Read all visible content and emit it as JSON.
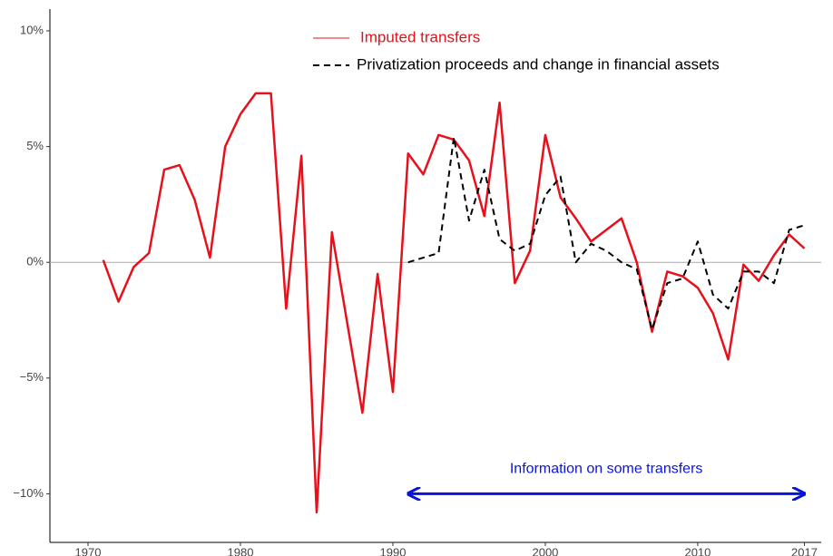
{
  "chart_data": {
    "type": "line",
    "x": [
      1971,
      1972,
      1973,
      1974,
      1975,
      1976,
      1977,
      1978,
      1979,
      1980,
      1981,
      1982,
      1983,
      1984,
      1985,
      1986,
      1987,
      1988,
      1989,
      1990,
      1991,
      1992,
      1993,
      1994,
      1995,
      1996,
      1997,
      1998,
      1999,
      2000,
      2001,
      2002,
      2003,
      2004,
      2005,
      2006,
      2007,
      2008,
      2009,
      2010,
      2011,
      2012,
      2013,
      2014,
      2015,
      2016,
      2017
    ],
    "series": [
      {
        "name": "Imputed transfers",
        "color": "#e8101a",
        "dash": false,
        "values": [
          0.1,
          -1.7,
          -0.2,
          0.4,
          4.0,
          4.2,
          2.7,
          0.2,
          5.0,
          6.4,
          7.3,
          7.3,
          -2.0,
          4.6,
          -10.8,
          1.3,
          -2.6,
          -6.5,
          -0.5,
          -5.6,
          4.7,
          3.8,
          5.5,
          5.3,
          4.4,
          2.0,
          6.9,
          -0.9,
          0.5,
          5.5,
          2.8,
          1.9,
          0.9,
          1.4,
          1.9,
          0.0,
          -3.0,
          -0.4,
          -0.6,
          -1.1,
          -2.2,
          -4.2,
          -0.1,
          -0.8,
          0.3,
          1.2,
          0.6
        ]
      },
      {
        "name": "Privatization proceeds and change in financial assets",
        "color": "#000000",
        "dash": true,
        "values": [
          null,
          null,
          null,
          null,
          null,
          null,
          null,
          null,
          null,
          null,
          null,
          null,
          null,
          null,
          null,
          null,
          null,
          null,
          null,
          null,
          0.0,
          0.2,
          0.4,
          5.4,
          1.8,
          4.0,
          1.0,
          0.5,
          0.8,
          2.9,
          3.7,
          0.0,
          0.8,
          0.5,
          0.0,
          -0.3,
          -2.9,
          -0.9,
          -0.7,
          0.9,
          -1.4,
          -2.0,
          -0.4,
          -0.4,
          -0.9,
          1.4,
          1.6
        ]
      }
    ],
    "xlim": [
      1967.5,
      2018.1
    ],
    "xticks": [
      1970,
      1980,
      1990,
      2000,
      2010,
      2017
    ],
    "ylim": [
      -12.1,
      10.94
    ],
    "yticks": [
      {
        "value": -10,
        "label": "−10%"
      },
      {
        "value": -5,
        "label": "−5%"
      },
      {
        "value": 0,
        "label": "0%"
      },
      {
        "value": 5,
        "label": "5%"
      },
      {
        "value": 10,
        "label": "10%"
      }
    ],
    "zero_line": true,
    "legend": "top",
    "annotation": {
      "text": "Information on some transfers",
      "color": "#0a14d8",
      "x": [
        1991,
        2017
      ],
      "y": -10
    }
  }
}
